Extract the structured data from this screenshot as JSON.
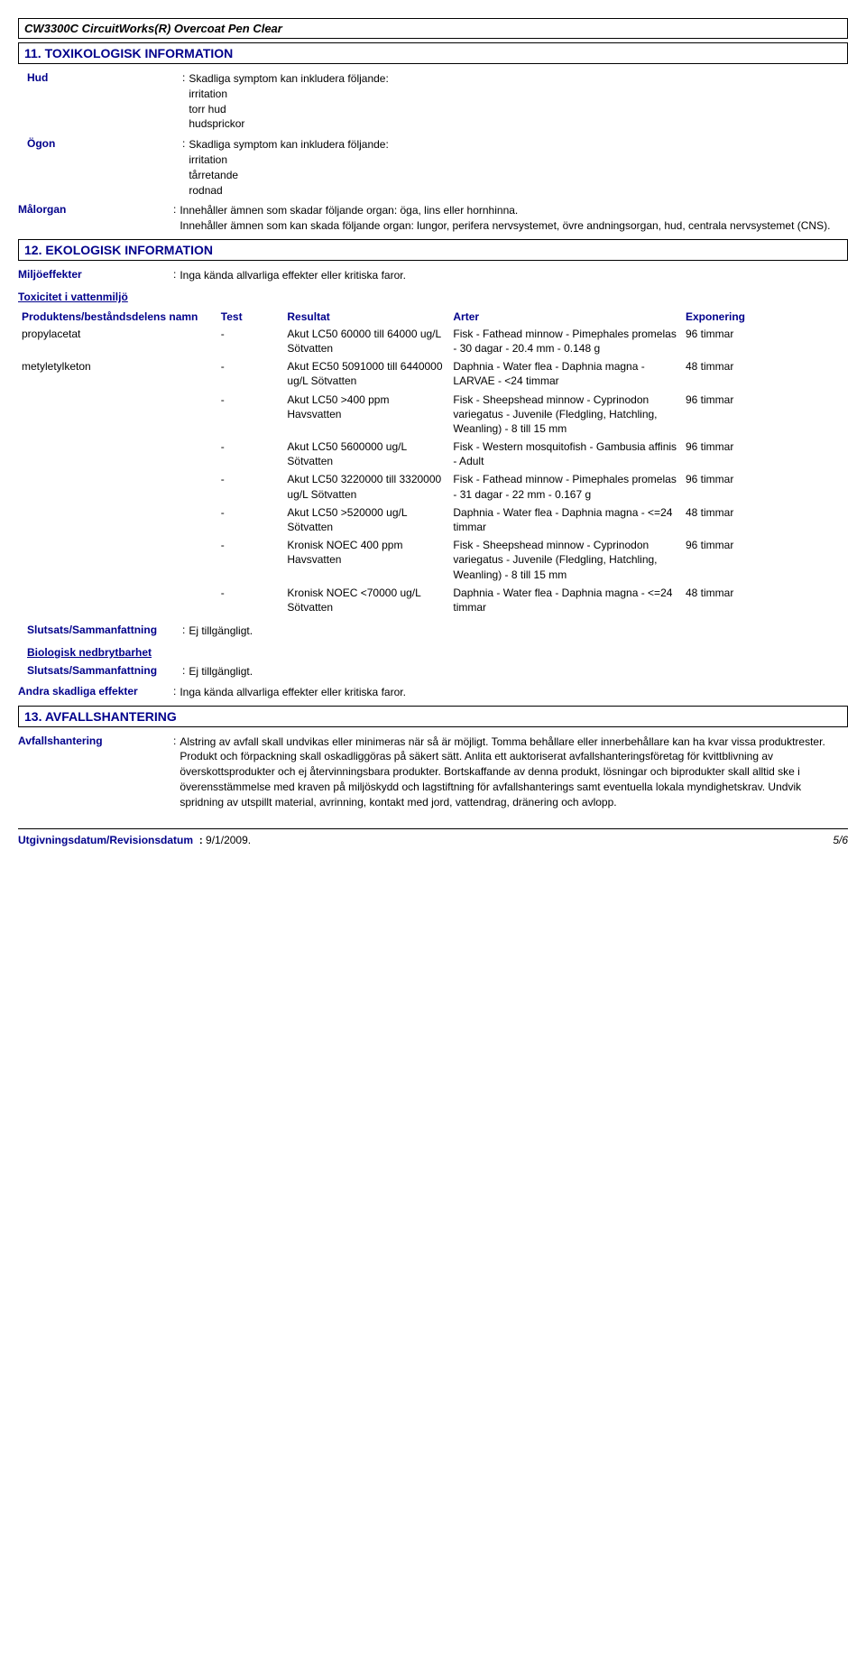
{
  "header": {
    "title": "CW3300C CircuitWorks(R) Overcoat Pen Clear"
  },
  "section11": {
    "title": "11. TOXIKOLOGISK INFORMATION",
    "hud": {
      "label": "Hud",
      "value": "Skadliga symptom kan inkludera följande:\nirritation\ntorr hud\nhudsprickor"
    },
    "ogon": {
      "label": "Ögon",
      "value": "Skadliga symptom kan inkludera följande:\nirritation\ntårretande\nrodnad"
    },
    "malorgan": {
      "label": "Målorgan",
      "value": "Innehåller ämnen som skadar följande organ: öga, lins eller hornhinna.\nInnehåller ämnen som kan skada följande organ: lungor, perifera nervsystemet, övre andningsorgan, hud, centrala nervsystemet (CNS)."
    }
  },
  "section12": {
    "title": "12. EKOLOGISK INFORMATION",
    "miljo": {
      "label": "Miljöeffekter",
      "value": "Inga kända allvarliga effekter eller kritiska faror."
    },
    "toxLabel": "Toxicitet i vattenmiljö",
    "headers": {
      "name": "Produktens/beståndsdelens namn",
      "test": "Test",
      "result": "Resultat",
      "arter": "Arter",
      "exp": "Exponering"
    },
    "rows": [
      {
        "name": "propylacetat",
        "test": "-",
        "result": "Akut LC50 60000 till 64000 ug/L Sötvatten",
        "arter": "Fisk - Fathead minnow - Pimephales promelas - 30 dagar - 20.4 mm - 0.148 g",
        "exp": "96 timmar"
      },
      {
        "name": "metyletylketon",
        "test": "-",
        "result": "Akut EC50 5091000 till 6440000 ug/L Sötvatten",
        "arter": "Daphnia - Water flea - Daphnia magna - LARVAE - <24 timmar",
        "exp": "48 timmar"
      },
      {
        "name": "",
        "test": "-",
        "result": "Akut LC50 >400 ppm Havsvatten",
        "arter": "Fisk - Sheepshead minnow - Cyprinodon variegatus - Juvenile (Fledgling, Hatchling, Weanling) - 8 till 15 mm",
        "exp": "96 timmar"
      },
      {
        "name": "",
        "test": "-",
        "result": "Akut LC50 5600000 ug/L Sötvatten",
        "arter": "Fisk - Western mosquitofish - Gambusia affinis - Adult",
        "exp": "96 timmar"
      },
      {
        "name": "",
        "test": "-",
        "result": "Akut LC50 3220000 till 3320000 ug/L Sötvatten",
        "arter": "Fisk - Fathead minnow - Pimephales promelas - 31 dagar - 22 mm - 0.167 g",
        "exp": "96 timmar"
      },
      {
        "name": "",
        "test": "-",
        "result": "Akut LC50 >520000 ug/L Sötvatten",
        "arter": "Daphnia - Water flea - Daphnia magna - <=24 timmar",
        "exp": "48 timmar"
      },
      {
        "name": "",
        "test": "-",
        "result": "Kronisk NOEC 400 ppm Havsvatten",
        "arter": "Fisk - Sheepshead minnow - Cyprinodon variegatus - Juvenile (Fledgling, Hatchling, Weanling) - 8 till 15 mm",
        "exp": "96 timmar"
      },
      {
        "name": "",
        "test": "-",
        "result": "Kronisk NOEC <70000 ug/L Sötvatten",
        "arter": "Daphnia - Water flea - Daphnia magna - <=24 timmar",
        "exp": "48 timmar"
      }
    ],
    "slutsats1": {
      "label": "Slutsats/Sammanfattning",
      "value": "Ej tillgängligt."
    },
    "bioLabel": "Biologisk nedbrytbarhet",
    "slutsats2": {
      "label": "Slutsats/Sammanfattning",
      "value": "Ej tillgängligt."
    },
    "andra": {
      "label": "Andra skadliga effekter",
      "value": "Inga kända allvarliga effekter eller kritiska faror."
    }
  },
  "section13": {
    "title": "13. AVFALLSHANTERING",
    "avfall": {
      "label": "Avfallshantering",
      "value": "Alstring av avfall skall undvikas eller minimeras när så är möjligt. Tomma behållare eller innerbehållare kan ha kvar vissa produktrester. Produkt och förpackning skall oskadliggöras på säkert sätt. Anlita ett auktoriserat avfallshanteringsföretag för kvittblivning av överskottsprodukter och ej återvinningsbara produkter. Bortskaffande av denna produkt, lösningar och biprodukter skall alltid ske i överensstämmelse med kraven på miljöskydd och lagstiftning för avfallshanterings samt eventuella lokala myndighetskrav. Undvik spridning av utspillt material, avrinning, kontakt med jord, vattendrag, dränering och avlopp."
    }
  },
  "footer": {
    "label": "Utgivningsdatum/Revisionsdatum",
    "date": "9/1/2009.",
    "page": "5/6"
  }
}
